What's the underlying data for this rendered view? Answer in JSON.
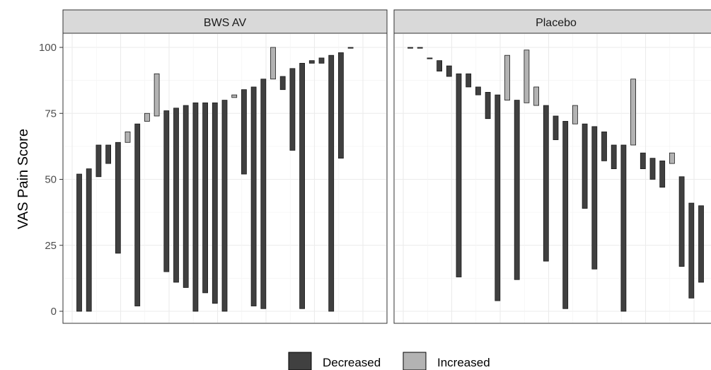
{
  "chart_data": {
    "type": "floating-bar",
    "ylabel": "VAS Pain Score",
    "ylim": [
      0,
      100
    ],
    "yticks": [
      0,
      25,
      50,
      75,
      100
    ],
    "grid": true,
    "legend": {
      "position": "bottom",
      "entries": [
        {
          "label": "Decreased",
          "color": "#404040"
        },
        {
          "label": "Increased",
          "color": "#b3b3b3"
        }
      ]
    },
    "panels": [
      {
        "title": "BWS AV",
        "bars": [
          {
            "low": 0,
            "high": 52,
            "group": "Decreased"
          },
          {
            "low": 0,
            "high": 54,
            "group": "Decreased"
          },
          {
            "low": 51,
            "high": 63,
            "group": "Decreased"
          },
          {
            "low": 56,
            "high": 63,
            "group": "Decreased"
          },
          {
            "low": 22,
            "high": 64,
            "group": "Decreased"
          },
          {
            "low": 64,
            "high": 68,
            "group": "Increased"
          },
          {
            "low": 2,
            "high": 71,
            "group": "Decreased"
          },
          {
            "low": 72,
            "high": 75,
            "group": "Increased"
          },
          {
            "low": 74,
            "high": 90,
            "group": "Increased"
          },
          {
            "low": 15,
            "high": 76,
            "group": "Decreased"
          },
          {
            "low": 11,
            "high": 77,
            "group": "Decreased"
          },
          {
            "low": 9,
            "high": 78,
            "group": "Decreased"
          },
          {
            "low": 0,
            "high": 79,
            "group": "Decreased"
          },
          {
            "low": 7,
            "high": 79,
            "group": "Decreased"
          },
          {
            "low": 3,
            "high": 79,
            "group": "Decreased"
          },
          {
            "low": 0,
            "high": 80,
            "group": "Decreased"
          },
          {
            "low": 81,
            "high": 82,
            "group": "Increased"
          },
          {
            "low": 52,
            "high": 84,
            "group": "Decreased"
          },
          {
            "low": 2,
            "high": 85,
            "group": "Decreased"
          },
          {
            "low": 1,
            "high": 88,
            "group": "Decreased"
          },
          {
            "low": 88,
            "high": 100,
            "group": "Increased"
          },
          {
            "low": 84,
            "high": 89,
            "group": "Decreased"
          },
          {
            "low": 61,
            "high": 92,
            "group": "Decreased"
          },
          {
            "low": 1,
            "high": 94,
            "group": "Decreased"
          },
          {
            "low": 94,
            "high": 95,
            "group": "Decreased"
          },
          {
            "low": 94,
            "high": 96,
            "group": "Decreased"
          },
          {
            "low": 0,
            "high": 97,
            "group": "Decreased"
          },
          {
            "low": 58,
            "high": 98,
            "group": "Decreased"
          },
          {
            "low": 100,
            "high": 100,
            "group": "Decreased"
          }
        ]
      },
      {
        "title": "Placebo",
        "bars": [
          {
            "low": 100,
            "high": 100,
            "group": "Decreased"
          },
          {
            "low": 100,
            "high": 100,
            "group": "Decreased"
          },
          {
            "low": 96,
            "high": 96,
            "group": "Decreased"
          },
          {
            "low": 91,
            "high": 95,
            "group": "Decreased"
          },
          {
            "low": 89,
            "high": 93,
            "group": "Decreased"
          },
          {
            "low": 13,
            "high": 90,
            "group": "Decreased"
          },
          {
            "low": 85,
            "high": 90,
            "group": "Decreased"
          },
          {
            "low": 82,
            "high": 85,
            "group": "Decreased"
          },
          {
            "low": 73,
            "high": 83,
            "group": "Decreased"
          },
          {
            "low": 4,
            "high": 82,
            "group": "Decreased"
          },
          {
            "low": 80,
            "high": 97,
            "group": "Increased"
          },
          {
            "low": 12,
            "high": 80,
            "group": "Decreased"
          },
          {
            "low": 79,
            "high": 99,
            "group": "Increased"
          },
          {
            "low": 78,
            "high": 85,
            "group": "Increased"
          },
          {
            "low": 19,
            "high": 78,
            "group": "Decreased"
          },
          {
            "low": 65,
            "high": 74,
            "group": "Decreased"
          },
          {
            "low": 1,
            "high": 72,
            "group": "Decreased"
          },
          {
            "low": 71,
            "high": 78,
            "group": "Increased"
          },
          {
            "low": 39,
            "high": 71,
            "group": "Decreased"
          },
          {
            "low": 16,
            "high": 70,
            "group": "Decreased"
          },
          {
            "low": 57,
            "high": 68,
            "group": "Decreased"
          },
          {
            "low": 54,
            "high": 63,
            "group": "Decreased"
          },
          {
            "low": 0,
            "high": 63,
            "group": "Decreased"
          },
          {
            "low": 63,
            "high": 88,
            "group": "Increased"
          },
          {
            "low": 54,
            "high": 60,
            "group": "Decreased"
          },
          {
            "low": 50,
            "high": 58,
            "group": "Decreased"
          },
          {
            "low": 47,
            "high": 57,
            "group": "Decreased"
          },
          {
            "low": 56,
            "high": 60,
            "group": "Increased"
          },
          {
            "low": 17,
            "high": 51,
            "group": "Decreased"
          },
          {
            "low": 5,
            "high": 41,
            "group": "Decreased"
          },
          {
            "low": 11,
            "high": 40,
            "group": "Decreased"
          }
        ]
      }
    ]
  }
}
